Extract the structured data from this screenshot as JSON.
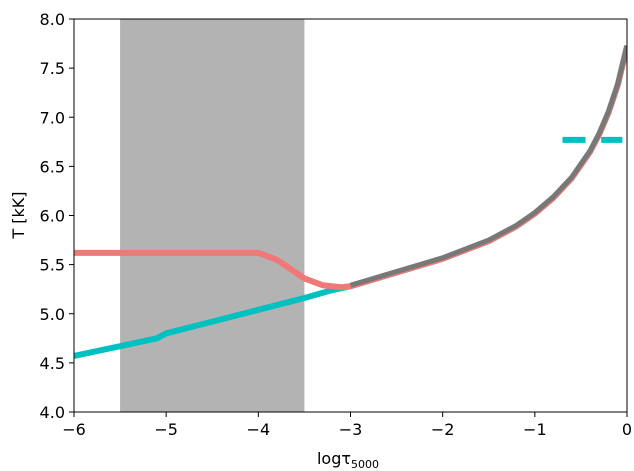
{
  "chart_data": {
    "type": "line",
    "xlabel": "logτ",
    "xlabel_sub": "5000",
    "ylabel": "T [kK]",
    "xlim": [
      -6,
      0
    ],
    "ylim": [
      4.0,
      8.0
    ],
    "x_ticks": [
      -6,
      -5,
      -4,
      -3,
      -2,
      -1,
      0
    ],
    "x_tick_labels": [
      "−6",
      "−5",
      "−4",
      "−3",
      "−2",
      "−1",
      "0"
    ],
    "y_ticks": [
      4.0,
      4.5,
      5.0,
      5.5,
      6.0,
      6.5,
      7.0,
      7.5,
      8.0
    ],
    "y_tick_labels": [
      "4.0",
      "4.5",
      "5.0",
      "5.5",
      "6.0",
      "6.5",
      "7.0",
      "7.5",
      "8.0"
    ],
    "grid": false,
    "shaded_region": {
      "x": [
        -5.5,
        -3.5
      ],
      "color": "#b3b3b3"
    },
    "series": [
      {
        "color": "#00c0c0",
        "style": "solid",
        "x": [
          -6.0,
          -5.5,
          -5.1,
          -5.0,
          -4.5,
          -4.0,
          -3.5,
          -3.2,
          -3.0,
          -2.5,
          -2.0,
          -1.5,
          -1.2,
          -1.0,
          -0.8,
          -0.6,
          -0.4,
          -0.3,
          -0.2,
          -0.1,
          0.0
        ],
        "y": [
          4.57,
          4.67,
          4.75,
          4.8,
          4.92,
          5.04,
          5.16,
          5.24,
          5.28,
          5.42,
          5.56,
          5.74,
          5.89,
          6.02,
          6.18,
          6.38,
          6.65,
          6.83,
          7.05,
          7.33,
          7.72
        ]
      },
      {
        "color": "#f07878",
        "style": "solid",
        "x": [
          -6.0,
          -5.5,
          -5.0,
          -4.5,
          -4.0,
          -3.8,
          -3.5,
          -3.3,
          -3.1,
          -3.0,
          -2.5,
          -2.0,
          -1.5,
          -1.2,
          -1.0,
          -0.8,
          -0.6,
          -0.4,
          -0.3,
          -0.2,
          -0.1,
          0.0
        ],
        "y": [
          5.62,
          5.62,
          5.62,
          5.62,
          5.62,
          5.55,
          5.36,
          5.29,
          5.27,
          5.28,
          5.42,
          5.56,
          5.74,
          5.89,
          6.02,
          6.18,
          6.38,
          6.65,
          6.83,
          7.05,
          7.33,
          7.72
        ]
      },
      {
        "color": "#787878",
        "style": "solid",
        "x": [
          -3.0,
          -2.5,
          -2.0,
          -1.5,
          -1.2,
          -1.0,
          -0.8,
          -0.6,
          -0.4,
          -0.3,
          -0.2,
          -0.1,
          0.0
        ],
        "y": [
          5.29,
          5.43,
          5.57,
          5.75,
          5.9,
          6.03,
          6.19,
          6.39,
          6.66,
          6.84,
          7.06,
          7.34,
          7.73
        ]
      }
    ],
    "dashed_marker": {
      "color": "#00c0c0",
      "segments": [
        [
          -0.7,
          -0.45
        ],
        [
          -0.28,
          -0.05
        ]
      ],
      "y": 6.77
    }
  }
}
